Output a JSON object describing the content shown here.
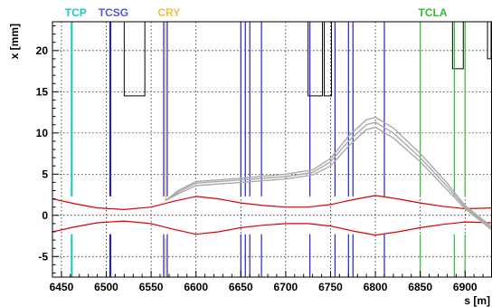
{
  "chart_data": {
    "type": "line",
    "title": "",
    "xlabel": "s [m]",
    "ylabel": "x [mm]",
    "xlim": [
      6440,
      6930
    ],
    "ylim": [
      -7.5,
      23.5
    ],
    "xticks": [
      6450,
      6500,
      6550,
      6600,
      6650,
      6700,
      6750,
      6800,
      6850,
      6900
    ],
    "yticks": [
      -5,
      0,
      5,
      10,
      15,
      20
    ],
    "grid": true,
    "collimator_legend": [
      {
        "name": "TCP",
        "s": 6466,
        "color": "#22c8c0"
      },
      {
        "name": "TCSG",
        "s": 6508,
        "color": "#5555dd"
      },
      {
        "name": "CRY",
        "s": 6570,
        "color": "#f0c040"
      },
      {
        "name": "TCLA",
        "s": 6864,
        "color": "#33bb33"
      }
    ],
    "collimator_jaws": [
      {
        "type": "TCP",
        "color": "#22c8c0",
        "s": [
          6461,
          6462
        ],
        "upper_from": 2.3,
        "lower_to": -2.3
      },
      {
        "type": "TCSG",
        "color": "#2222cc",
        "s": [
          6504,
          6505,
          6564,
          6568,
          6650,
          6655,
          6660,
          6673,
          6727,
          6755,
          6770,
          6775,
          6810
        ],
        "upper_from": 2.3,
        "lower_to": -2.3
      },
      {
        "type": "CRY",
        "color": "#f0c040",
        "s": [
          6566
        ],
        "upper_from": 1.8,
        "lower_to": -2.8
      },
      {
        "type": "TCLA",
        "color": "#33bb33",
        "s": [
          6850,
          6888,
          6900
        ],
        "upper_from": 2.3,
        "lower_to": -2.3
      }
    ],
    "aperture_boxes": [
      {
        "s": [
          6520,
          6543
        ],
        "x": [
          14.5,
          23.5
        ]
      },
      {
        "s": [
          6725,
          6741
        ],
        "x": [
          14.5,
          23.5
        ]
      },
      {
        "s": [
          6743,
          6751
        ],
        "x": [
          14.5,
          23.5
        ]
      },
      {
        "s": [
          6886,
          6898
        ],
        "x": [
          17.8,
          23.5
        ]
      },
      {
        "s": [
          6925,
          6930
        ],
        "x": [
          19.0,
          23.5
        ]
      }
    ],
    "series": [
      {
        "role": "envelope-upper",
        "color": "#dd0000",
        "x": [
          6440,
          6465,
          6490,
          6520,
          6550,
          6575,
          6600,
          6625,
          6650,
          6675,
          6700,
          6725,
          6750,
          6775,
          6800,
          6825,
          6850,
          6875,
          6900,
          6930
        ],
        "y": [
          2.0,
          1.4,
          0.9,
          0.7,
          1.0,
          1.7,
          2.3,
          2.0,
          1.5,
          1.2,
          1.0,
          1.0,
          1.3,
          1.9,
          2.4,
          2.0,
          1.5,
          1.1,
          0.8,
          0.9
        ]
      },
      {
        "role": "envelope-lower",
        "color": "#dd0000",
        "x": [
          6440,
          6465,
          6490,
          6520,
          6550,
          6575,
          6600,
          6625,
          6650,
          6675,
          6700,
          6725,
          6750,
          6775,
          6800,
          6825,
          6850,
          6875,
          6900,
          6930
        ],
        "y": [
          -2.0,
          -1.4,
          -0.9,
          -0.7,
          -1.0,
          -1.7,
          -2.3,
          -2.0,
          -1.5,
          -1.2,
          -1.0,
          -1.0,
          -1.3,
          -1.9,
          -2.4,
          -2.0,
          -1.5,
          -1.1,
          -0.8,
          -0.9
        ]
      },
      {
        "role": "halo-trajectory",
        "color": "#aaaaaa",
        "x": [
          6566,
          6580,
          6600,
          6650,
          6700,
          6730,
          6750,
          6770,
          6790,
          6800,
          6820,
          6850,
          6880,
          6900,
          6930
        ],
        "y": [
          1.8,
          2.8,
          3.9,
          4.3,
          4.7,
          5.2,
          6.5,
          9.0,
          11.0,
          11.3,
          10.0,
          7.0,
          3.5,
          1.0,
          -1.6
        ]
      },
      {
        "role": "halo-trajectory",
        "color": "#aaaaaa",
        "x": [
          6566,
          6580,
          6600,
          6650,
          6700,
          6730,
          6750,
          6770,
          6790,
          6800,
          6820,
          6850,
          6880,
          6900,
          6930
        ],
        "y": [
          1.8,
          2.6,
          3.6,
          4.0,
          4.4,
          4.9,
          6.0,
          8.4,
          10.4,
          10.7,
          9.4,
          6.5,
          3.1,
          0.8,
          -1.8
        ]
      },
      {
        "role": "halo-trajectory",
        "color": "#aaaaaa",
        "x": [
          6566,
          6580,
          6600,
          6650,
          6700,
          6730,
          6750,
          6770,
          6790,
          6800,
          6820,
          6850,
          6880,
          6900,
          6930
        ],
        "y": [
          1.8,
          3.0,
          4.1,
          4.5,
          5.0,
          5.5,
          6.9,
          9.6,
          11.6,
          11.9,
          10.6,
          7.5,
          3.9,
          1.2,
          -1.4
        ]
      }
    ]
  }
}
